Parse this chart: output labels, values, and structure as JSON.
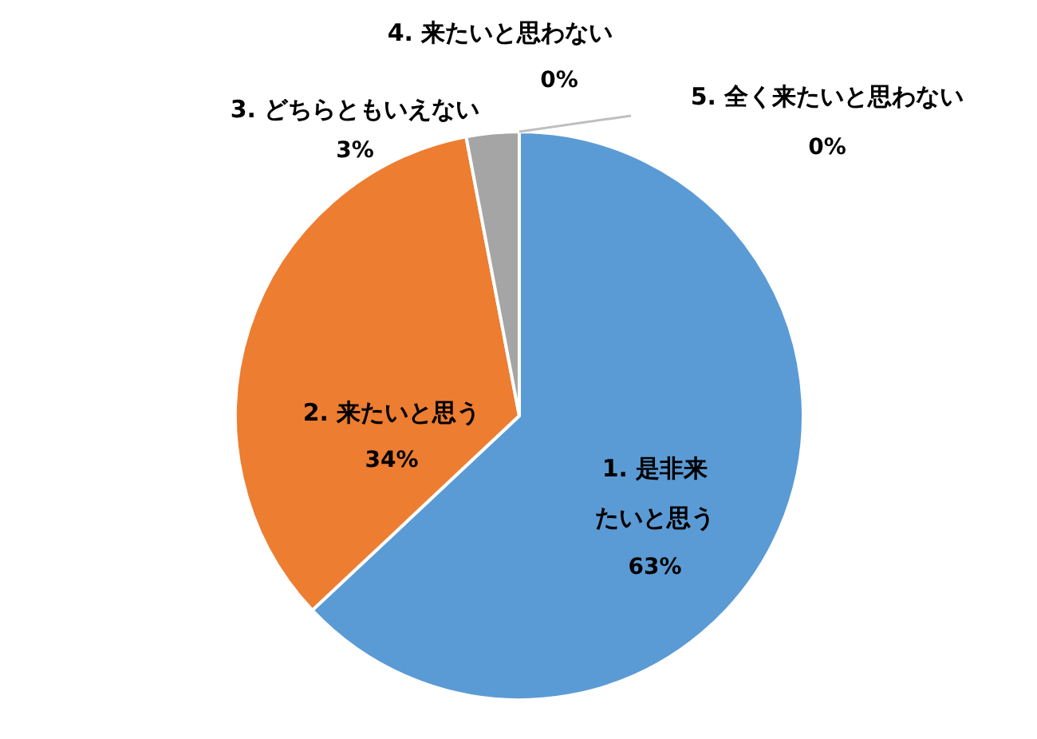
{
  "chart_data": {
    "type": "pie",
    "categories": [
      "1. 是非来たいと思う",
      "2. 来たいと思う",
      "3. どちらともいえない",
      "4. 来たいと思わない",
      "5. 全く来たいと思わない"
    ],
    "values": [
      63,
      34,
      3,
      0,
      0
    ],
    "colors": [
      "#5b9bd5",
      "#ed7d31",
      "#a5a5a5",
      "#ffc000",
      "#4472c4"
    ],
    "value_labels": [
      "63%",
      "34%",
      "3%",
      "0%",
      "0%"
    ]
  }
}
